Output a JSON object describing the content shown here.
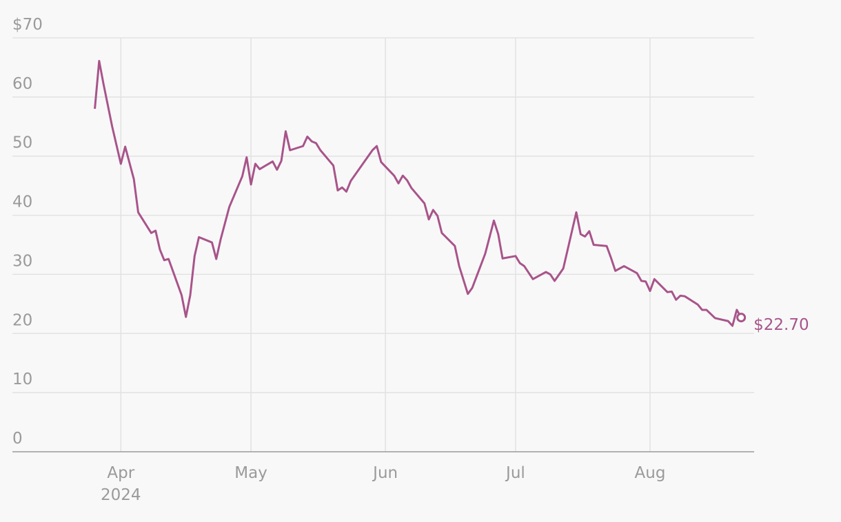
{
  "chart_data": {
    "type": "line",
    "x": [
      -6,
      -5,
      -4,
      -2,
      0,
      1,
      3,
      4,
      7,
      8,
      9,
      10,
      11,
      14,
      15,
      16,
      17,
      18,
      21,
      22,
      23,
      25,
      28,
      29,
      30,
      31,
      32,
      35,
      36,
      37,
      38,
      39,
      42,
      43,
      44,
      45,
      46,
      49,
      50,
      51,
      52,
      53,
      58,
      59,
      60,
      63,
      64,
      65,
      66,
      67,
      70,
      71,
      72,
      73,
      74,
      77,
      78,
      80,
      81,
      84,
      86,
      87,
      88,
      91,
      92,
      93,
      95,
      98,
      99,
      100,
      102,
      105,
      106,
      107,
      108,
      109,
      112,
      113,
      114,
      116,
      119,
      120,
      121,
      122,
      123,
      126,
      127,
      128,
      129,
      130,
      133,
      134,
      135,
      137,
      140,
      141,
      142,
      143
    ],
    "series": [
      {
        "color": "#a8548a",
        "values": [
          58,
          66.1,
          62.2,
          55,
          48.7,
          51.6,
          46.1,
          40.5,
          37,
          37.4,
          34.2,
          32.4,
          32.6,
          26.5,
          22.8,
          26.5,
          33.1,
          36.3,
          35.4,
          32.6,
          35.9,
          41.4,
          46.6,
          49.8,
          45.2,
          48.7,
          47.8,
          49.1,
          47.7,
          49.2,
          54.2,
          51,
          51.7,
          53.3,
          52.5,
          52.2,
          51,
          48.4,
          44.2,
          44.7,
          44,
          45.8,
          51,
          51.7,
          49,
          46.7,
          45.4,
          46.7,
          45.9,
          44.6,
          42,
          39.3,
          40.9,
          39.9,
          37,
          34.8,
          31.4,
          26.7,
          27.7,
          33.5,
          39.1,
          36.8,
          32.7,
          33.1,
          31.9,
          31.4,
          29.2,
          30.4,
          30,
          28.9,
          31,
          40.5,
          36.8,
          36.4,
          37.3,
          35,
          34.8,
          32.8,
          30.6,
          31.4,
          30.2,
          28.9,
          28.8,
          27.2,
          29.2,
          27,
          27.1,
          25.7,
          26.4,
          26.3,
          24.9,
          24,
          24,
          22.6,
          22.1,
          21.3,
          24,
          22.7
        ],
        "value_labels": [
          null,
          null,
          null,
          null,
          null,
          null,
          null,
          null,
          null,
          null,
          null,
          null,
          null,
          null,
          null,
          null,
          null,
          null,
          null,
          null,
          null,
          null,
          null,
          null,
          null,
          null,
          null,
          null,
          null,
          null,
          null,
          null,
          null,
          null,
          null,
          null,
          null,
          null,
          null,
          null,
          null,
          null,
          null,
          null,
          null,
          null,
          null,
          null,
          null,
          null,
          null,
          null,
          null,
          null,
          null,
          null,
          null,
          null,
          null,
          null,
          null,
          null,
          null,
          null,
          null,
          null,
          null,
          null,
          null,
          null,
          null,
          null,
          null,
          null,
          null,
          null,
          null,
          null,
          null,
          null,
          null,
          null,
          null,
          null,
          null,
          null,
          null,
          null,
          null,
          null,
          null,
          null,
          null,
          null,
          null,
          null,
          null,
          "$22.70"
        ]
      }
    ],
    "xlim": [
      -25,
      146
    ],
    "xticks": [
      {
        "value": 0,
        "label": "Apr"
      },
      {
        "value": 30,
        "label": "May"
      },
      {
        "value": 61,
        "label": "Jun"
      },
      {
        "value": 91,
        "label": "Jul"
      },
      {
        "value": 122,
        "label": "Aug"
      }
    ],
    "x_year_label": "2024",
    "ylim": [
      0,
      70
    ],
    "yticks": [
      0,
      10,
      20,
      30,
      40,
      50,
      60,
      {
        "value": 70,
        "label": "$70"
      }
    ],
    "grid": true
  }
}
